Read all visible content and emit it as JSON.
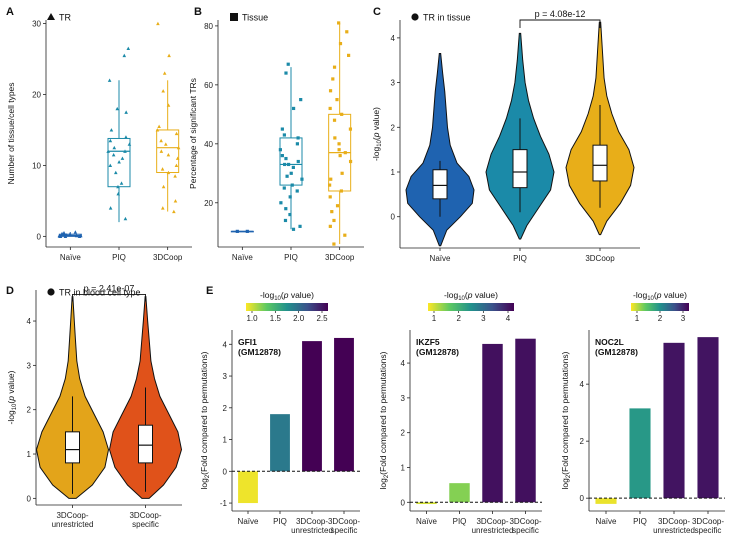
{
  "colors": {
    "naive": "#1f63b0",
    "piq": "#1b8aa8",
    "coop": "#e8ae19",
    "coop_unrestricted": "#e3a41a",
    "coop_specific": "#e0521a",
    "viridis": [
      "#fde725",
      "#5ec962",
      "#21918c",
      "#3b528b",
      "#440154"
    ]
  },
  "chart_data": [
    {
      "panel": "A",
      "type": "box",
      "legend": {
        "symbol": "triangle",
        "label": "TR"
      },
      "categories": [
        "Naïve",
        "PIQ",
        "3DCoop"
      ],
      "ylabel": "Number of tissue/cell types",
      "ylim": [
        -1.5,
        30.5
      ],
      "yticks": [
        0,
        10,
        20,
        30
      ],
      "boxes": [
        {
          "q1": 0.0,
          "median": 0.1,
          "q3": 0.3,
          "whisk_lo": 0,
          "whisk_hi": 0.6
        },
        {
          "q1": 7.0,
          "median": 12.0,
          "q3": 13.8,
          "whisk_lo": 2.0,
          "whisk_hi": 22.0
        },
        {
          "q1": 9.0,
          "median": 12.5,
          "q3": 15.0,
          "whisk_lo": 3.5,
          "whisk_hi": 22.0
        }
      ],
      "points": [
        [
          0.1,
          0.3,
          0.0,
          0.2,
          0.5,
          0.0,
          0.1,
          0.4,
          0.2,
          0.0,
          0.6,
          0.1,
          0.3,
          0.0,
          0.2
        ],
        [
          26.5,
          25.5,
          22,
          18,
          17.5,
          15,
          14,
          13.5,
          13,
          12.5,
          12,
          12,
          11.5,
          11,
          10.5,
          10,
          9,
          7.5,
          7,
          6,
          4,
          2.5
        ],
        [
          30,
          25.5,
          23,
          20.5,
          18.5,
          15.5,
          15,
          14.5,
          13.5,
          13,
          12.5,
          12,
          11.5,
          11,
          10,
          9.5,
          9,
          8.5,
          7,
          5,
          4,
          3.5
        ]
      ]
    },
    {
      "panel": "B",
      "type": "box",
      "legend": {
        "symbol": "square",
        "label": "Tissue"
      },
      "categories": [
        "Naïve",
        "PIQ",
        "3DCoop"
      ],
      "ylabel": "Percentage of significant TRs",
      "ylim": [
        5,
        82
      ],
      "yticks": [
        20,
        40,
        60,
        80
      ],
      "boxes": [
        {
          "q1": 10.3,
          "median": 10.3,
          "q3": 10.3,
          "whisk_lo": 10.3,
          "whisk_hi": 10.3
        },
        {
          "q1": 26,
          "median": 33,
          "q3": 42,
          "whisk_lo": 11,
          "whisk_hi": 66
        },
        {
          "q1": 24,
          "median": 37,
          "q3": 50,
          "whisk_lo": 6,
          "whisk_hi": 81
        }
      ],
      "points": [
        [
          10.3,
          10.3
        ],
        [
          67,
          64,
          55,
          52,
          45,
          43,
          42,
          40,
          38,
          36,
          35,
          34,
          33,
          33,
          32,
          30,
          29,
          28,
          26,
          25,
          24,
          22,
          20,
          18,
          16,
          14,
          12,
          11
        ],
        [
          81,
          78,
          74,
          70,
          66,
          62,
          58,
          55,
          52,
          50,
          48,
          45,
          42,
          40,
          38,
          37,
          36,
          34,
          30,
          28,
          26,
          24,
          22,
          19,
          17,
          14,
          12,
          9,
          6
        ]
      ]
    },
    {
      "panel": "C",
      "type": "violin",
      "legend": {
        "symbol": "circle",
        "label": "TR in tissue"
      },
      "categories": [
        "Naïve",
        "PIQ",
        "3DCoop"
      ],
      "ylabel": "-log10(p value)",
      "ylim": [
        -0.7,
        4.4
      ],
      "yticks": [
        0,
        1,
        2,
        3,
        4
      ],
      "annotation": {
        "text": "p = 4.08e-12",
        "between": [
          1,
          2
        ]
      },
      "boxes": [
        {
          "q1": 0.4,
          "median": 0.7,
          "q3": 1.05,
          "whisk_lo": 0.0,
          "whisk_hi": 1.25
        },
        {
          "q1": 0.65,
          "median": 1.0,
          "q3": 1.5,
          "whisk_lo": 0.1,
          "whisk_hi": 2.2
        },
        {
          "q1": 0.8,
          "median": 1.15,
          "q3": 1.6,
          "whisk_lo": 0.2,
          "whisk_hi": 2.5
        }
      ],
      "violins": [
        {
          "min": -0.65,
          "max": 3.65,
          "profile": [
            [
              -0.65,
              0.02
            ],
            [
              -0.3,
              0.2
            ],
            [
              0.0,
              0.6
            ],
            [
              0.3,
              0.95
            ],
            [
              0.6,
              1.0
            ],
            [
              0.9,
              0.85
            ],
            [
              1.2,
              0.5
            ],
            [
              1.6,
              0.3
            ],
            [
              2.0,
              0.22
            ],
            [
              2.4,
              0.18
            ],
            [
              2.8,
              0.14
            ],
            [
              3.2,
              0.08
            ],
            [
              3.65,
              0.02
            ]
          ]
        },
        {
          "min": -0.5,
          "max": 4.1,
          "profile": [
            [
              -0.5,
              0.02
            ],
            [
              -0.2,
              0.2
            ],
            [
              0.2,
              0.55
            ],
            [
              0.6,
              0.9
            ],
            [
              1.0,
              1.0
            ],
            [
              1.4,
              0.85
            ],
            [
              1.8,
              0.6
            ],
            [
              2.2,
              0.4
            ],
            [
              2.6,
              0.25
            ],
            [
              3.0,
              0.15
            ],
            [
              3.5,
              0.08
            ],
            [
              4.1,
              0.02
            ]
          ]
        },
        {
          "min": -0.4,
          "max": 4.35,
          "profile": [
            [
              -0.4,
              0.02
            ],
            [
              -0.1,
              0.2
            ],
            [
              0.3,
              0.6
            ],
            [
              0.7,
              0.9
            ],
            [
              1.1,
              1.0
            ],
            [
              1.5,
              0.85
            ],
            [
              1.9,
              0.55
            ],
            [
              2.3,
              0.35
            ],
            [
              2.7,
              0.2
            ],
            [
              3.1,
              0.12
            ],
            [
              3.6,
              0.08
            ],
            [
              4.35,
              0.02
            ]
          ]
        }
      ]
    },
    {
      "panel": "D",
      "type": "violin",
      "legend": {
        "symbol": "circle",
        "label": "TR in blood cell type"
      },
      "categories": [
        "3DCoop-\nunrestricted",
        "3DCoop-\nspecific"
      ],
      "ylabel": "-log10(p value)",
      "ylim": [
        -0.15,
        4.7
      ],
      "yticks": [
        0,
        1,
        2,
        3,
        4
      ],
      "annotation": {
        "text": "p = 2.41e-07",
        "between": [
          0,
          1
        ]
      },
      "boxes": [
        {
          "q1": 0.8,
          "median": 1.1,
          "q3": 1.5,
          "whisk_lo": 0.1,
          "whisk_hi": 2.3
        },
        {
          "q1": 0.8,
          "median": 1.2,
          "q3": 1.65,
          "whisk_lo": 0.15,
          "whisk_hi": 2.5
        }
      ],
      "violins": [
        {
          "min": 0.0,
          "max": 4.55,
          "profile": [
            [
              0.0,
              0.1
            ],
            [
              0.3,
              0.55
            ],
            [
              0.7,
              0.9
            ],
            [
              1.1,
              1.0
            ],
            [
              1.5,
              0.85
            ],
            [
              1.9,
              0.6
            ],
            [
              2.3,
              0.35
            ],
            [
              2.7,
              0.2
            ],
            [
              3.1,
              0.12
            ],
            [
              3.6,
              0.08
            ],
            [
              4.0,
              0.05
            ],
            [
              4.55,
              0.01
            ]
          ]
        },
        {
          "min": 0.0,
          "max": 4.55,
          "profile": [
            [
              0.0,
              0.1
            ],
            [
              0.3,
              0.5
            ],
            [
              0.7,
              0.85
            ],
            [
              1.1,
              1.0
            ],
            [
              1.5,
              0.9
            ],
            [
              1.9,
              0.65
            ],
            [
              2.3,
              0.4
            ],
            [
              2.7,
              0.25
            ],
            [
              3.1,
              0.15
            ],
            [
              3.6,
              0.1
            ],
            [
              4.0,
              0.06
            ],
            [
              4.55,
              0.01
            ]
          ]
        }
      ]
    },
    {
      "panel": "E",
      "type": "bar",
      "title": "GFI1\n(GM12878)",
      "legend_title": "-log10(p value)",
      "legend_ticks": [
        "1.0",
        "1.5",
        "2.0",
        "2.5"
      ],
      "categories": [
        "Naïve",
        "PIQ",
        "3DCoop-\nunrestricted",
        "3DCoop-\nspecific"
      ],
      "values": [
        -1.0,
        1.8,
        4.1,
        4.2
      ],
      "pvals": [
        0.8,
        2.0,
        3.0,
        3.0
      ],
      "ylabel": "log2(Fold compared to permutations)",
      "ylim": [
        -1.25,
        4.45
      ],
      "yticks": [
        -1,
        0,
        1,
        2,
        3,
        4
      ]
    },
    {
      "panel": "E2",
      "type": "bar",
      "title": "IKZF5\n(GM12878)",
      "legend_title": "-log10(p value)",
      "legend_ticks": [
        "1",
        "2",
        "3",
        "4"
      ],
      "categories": [
        "Naïve",
        "PIQ",
        "3DCoop-\nunrestricted",
        "3DCoop-\nspecific"
      ],
      "values": [
        -0.05,
        0.55,
        4.55,
        4.7
      ],
      "pvals": [
        0.5,
        1.0,
        4.2,
        4.2
      ],
      "ylabel": "log2(Fold compared to permutations)",
      "ylim": [
        -0.25,
        4.95
      ],
      "yticks": [
        0,
        1,
        2,
        3,
        4
      ]
    },
    {
      "panel": "E3",
      "type": "bar",
      "title": "NOC2L\n(GM12878)",
      "legend_title": "-log10(p value)",
      "legend_ticks": [
        "1",
        "2",
        "3"
      ],
      "categories": [
        "Naïve",
        "PIQ",
        "3DCoop-\nunrestricted",
        "3DCoop-\nspecific"
      ],
      "values": [
        -0.2,
        3.15,
        5.45,
        5.65
      ],
      "pvals": [
        0.5,
        2.0,
        3.6,
        3.6
      ],
      "ylabel": "log2(Fold compared to permutations)",
      "ylim": [
        -0.45,
        5.9
      ],
      "yticks": [
        0,
        2,
        4
      ]
    }
  ]
}
